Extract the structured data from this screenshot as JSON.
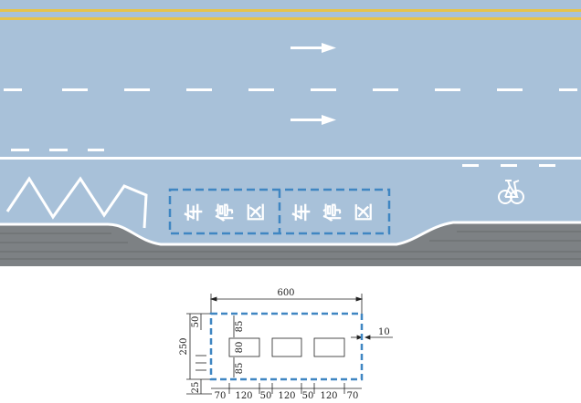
{
  "road_marking": {
    "characters": [
      "车",
      "停",
      "区"
    ],
    "colors": {
      "asphalt": "#a8c1d9",
      "centerline": "#e6c34a",
      "marking": "#ffffff",
      "parking_box": "#3f86c2",
      "curb": "#7d8184"
    }
  },
  "dimension_drawing": {
    "total_width": "600",
    "offset": "10",
    "height_total": "250",
    "height_top": "50",
    "height_bottom": "25",
    "inner_heights": [
      "85",
      "80",
      "85"
    ],
    "widths": [
      "70",
      "120",
      "50",
      "120",
      "50",
      "120",
      "70"
    ]
  }
}
